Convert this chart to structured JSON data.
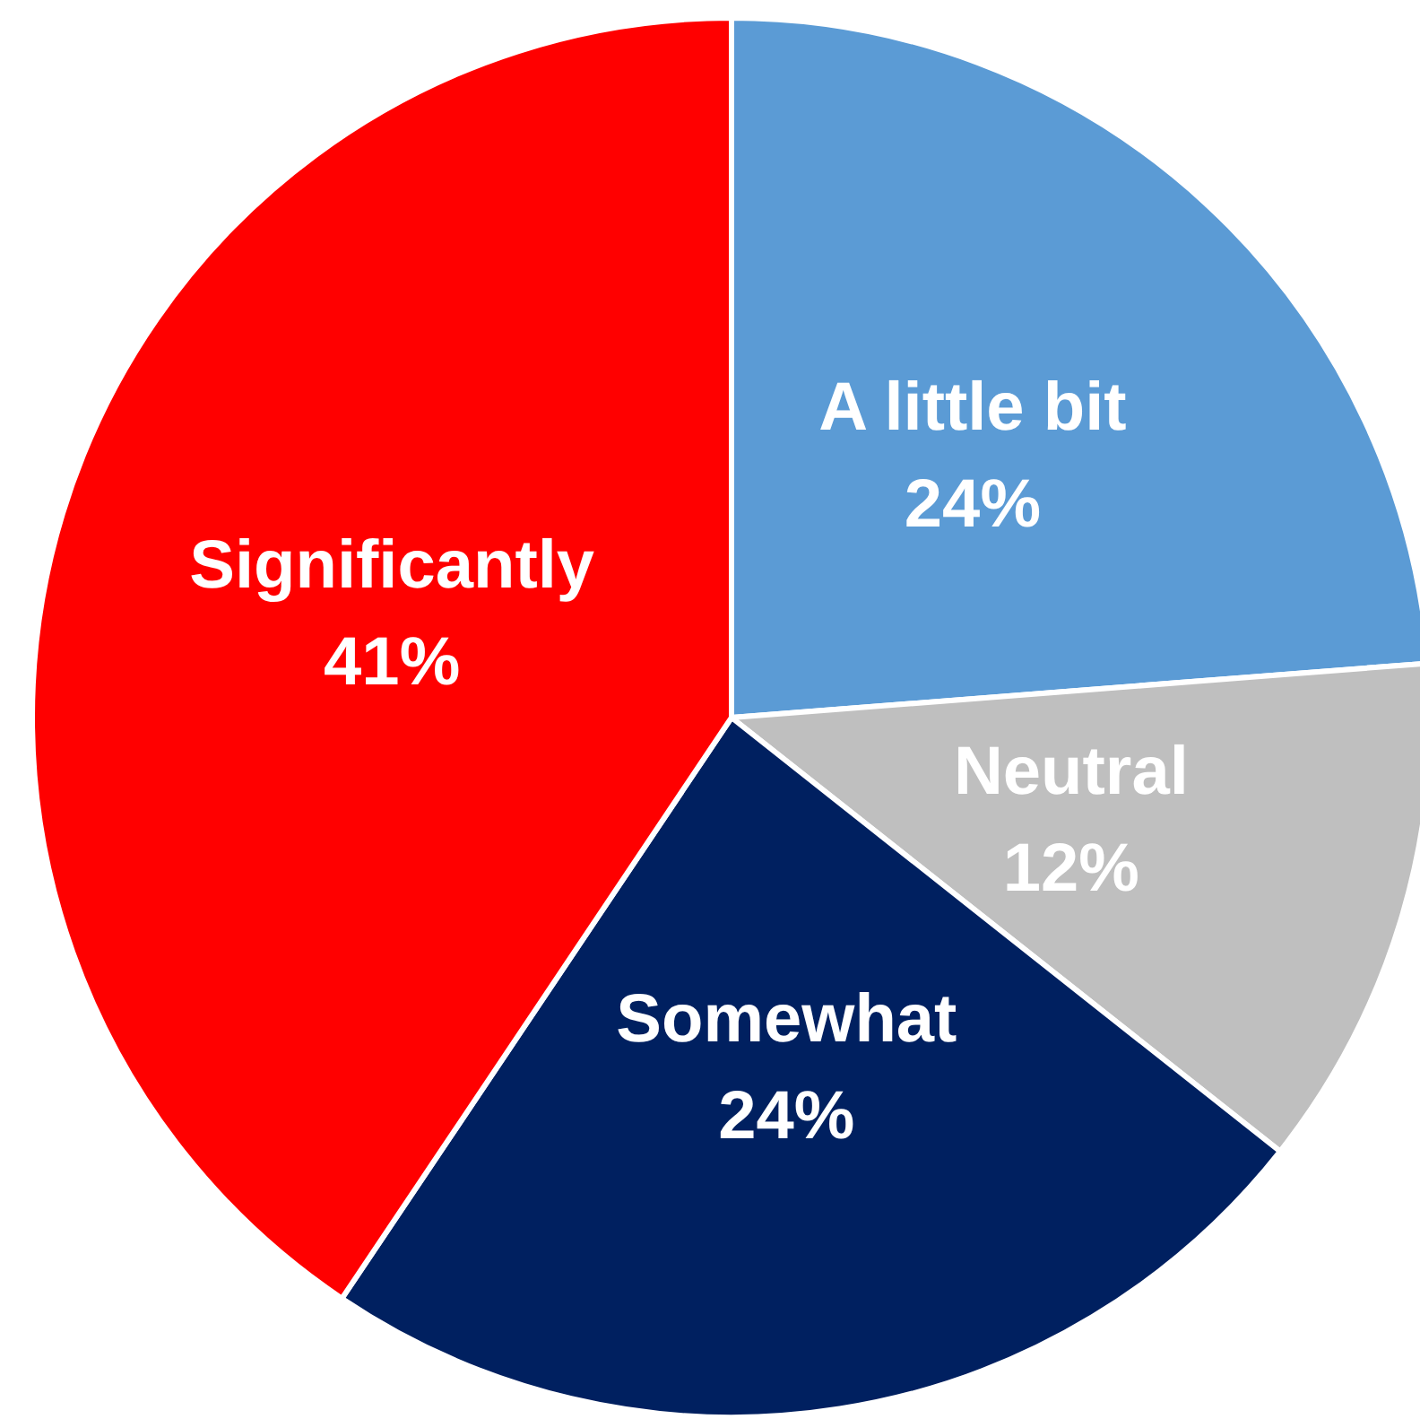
{
  "chart_data": {
    "type": "pie",
    "categories": [
      "A little bit",
      "Neutral",
      "Somewhat",
      "Significantly"
    ],
    "values": [
      24,
      12,
      24,
      41
    ],
    "value_labels": [
      "24%",
      "12%",
      "24%",
      "41%"
    ],
    "colors": [
      "#5b9bd5",
      "#bfbfbf",
      "#002060",
      "#ff0000"
    ],
    "legend": false
  }
}
